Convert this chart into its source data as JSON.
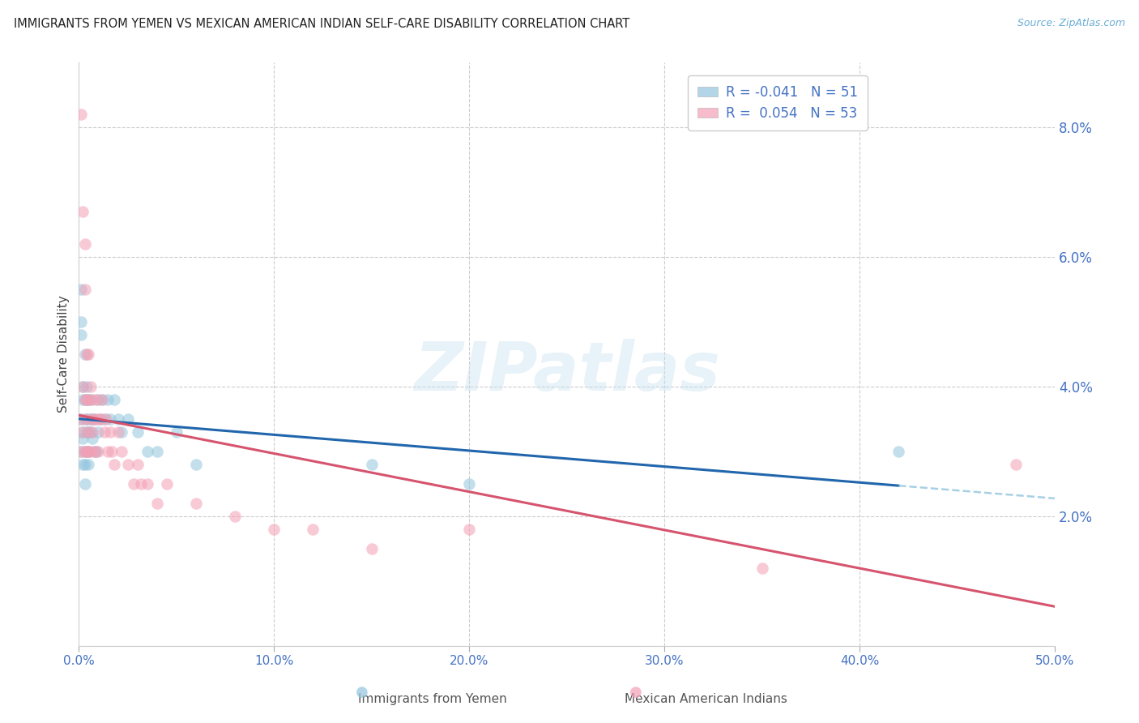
{
  "title": "IMMIGRANTS FROM YEMEN VS MEXICAN AMERICAN INDIAN SELF-CARE DISABILITY CORRELATION CHART",
  "source": "Source: ZipAtlas.com",
  "ylabel": "Self-Care Disability",
  "xlim": [
    0.0,
    0.5
  ],
  "ylim": [
    -0.005,
    0.09
  ],
  "plot_ylim": [
    0.0,
    0.09
  ],
  "xticks": [
    0.0,
    0.1,
    0.2,
    0.3,
    0.4,
    0.5
  ],
  "yticks_right": [
    0.02,
    0.04,
    0.06,
    0.08
  ],
  "ytick_labels_right": [
    "2.0%",
    "4.0%",
    "6.0%",
    "8.0%"
  ],
  "xtick_labels": [
    "0.0%",
    "10.0%",
    "20.0%",
    "30.0%",
    "40.0%",
    "50.0%"
  ],
  "legend_labels": [
    "R = -0.041   N = 51",
    "R =  0.054   N = 53"
  ],
  "series1_color": "#92c5de",
  "series2_color": "#f4a0b5",
  "trendline1_solid_color": "#2166ac",
  "trendline1_dash_color": "#92c5de",
  "trendline2_color": "#d6546e",
  "background_color": "#ffffff",
  "grid_color": "#cccccc",
  "watermark": "ZIPatlas",
  "series1_x": [
    0.001,
    0.001,
    0.001,
    0.001,
    0.001,
    0.002,
    0.002,
    0.002,
    0.002,
    0.002,
    0.003,
    0.003,
    0.003,
    0.003,
    0.003,
    0.003,
    0.004,
    0.004,
    0.004,
    0.004,
    0.005,
    0.005,
    0.005,
    0.005,
    0.006,
    0.006,
    0.006,
    0.007,
    0.007,
    0.008,
    0.008,
    0.009,
    0.01,
    0.01,
    0.011,
    0.012,
    0.013,
    0.015,
    0.016,
    0.018,
    0.02,
    0.022,
    0.025,
    0.03,
    0.035,
    0.04,
    0.05,
    0.06,
    0.15,
    0.2,
    0.42
  ],
  "series1_y": [
    0.05,
    0.055,
    0.048,
    0.035,
    0.03,
    0.04,
    0.033,
    0.038,
    0.032,
    0.028,
    0.045,
    0.038,
    0.035,
    0.03,
    0.028,
    0.025,
    0.04,
    0.035,
    0.033,
    0.03,
    0.038,
    0.033,
    0.03,
    0.028,
    0.038,
    0.035,
    0.033,
    0.035,
    0.032,
    0.035,
    0.03,
    0.03,
    0.038,
    0.033,
    0.035,
    0.038,
    0.035,
    0.038,
    0.035,
    0.038,
    0.035,
    0.033,
    0.035,
    0.033,
    0.03,
    0.03,
    0.033,
    0.028,
    0.028,
    0.025,
    0.03
  ],
  "series2_x": [
    0.001,
    0.001,
    0.001,
    0.002,
    0.002,
    0.002,
    0.003,
    0.003,
    0.003,
    0.003,
    0.004,
    0.004,
    0.004,
    0.004,
    0.005,
    0.005,
    0.005,
    0.005,
    0.006,
    0.006,
    0.006,
    0.007,
    0.007,
    0.008,
    0.008,
    0.009,
    0.01,
    0.01,
    0.011,
    0.012,
    0.013,
    0.014,
    0.015,
    0.016,
    0.017,
    0.018,
    0.02,
    0.022,
    0.025,
    0.028,
    0.03,
    0.032,
    0.035,
    0.04,
    0.045,
    0.06,
    0.08,
    0.1,
    0.12,
    0.15,
    0.2,
    0.35,
    0.48
  ],
  "series2_y": [
    0.082,
    0.035,
    0.03,
    0.067,
    0.04,
    0.033,
    0.062,
    0.055,
    0.038,
    0.03,
    0.045,
    0.038,
    0.035,
    0.03,
    0.045,
    0.038,
    0.033,
    0.03,
    0.04,
    0.035,
    0.03,
    0.038,
    0.033,
    0.035,
    0.03,
    0.038,
    0.035,
    0.03,
    0.035,
    0.038,
    0.033,
    0.035,
    0.03,
    0.033,
    0.03,
    0.028,
    0.033,
    0.03,
    0.028,
    0.025,
    0.028,
    0.025,
    0.025,
    0.022,
    0.025,
    0.022,
    0.02,
    0.018,
    0.018,
    0.015,
    0.018,
    0.012,
    0.028
  ]
}
